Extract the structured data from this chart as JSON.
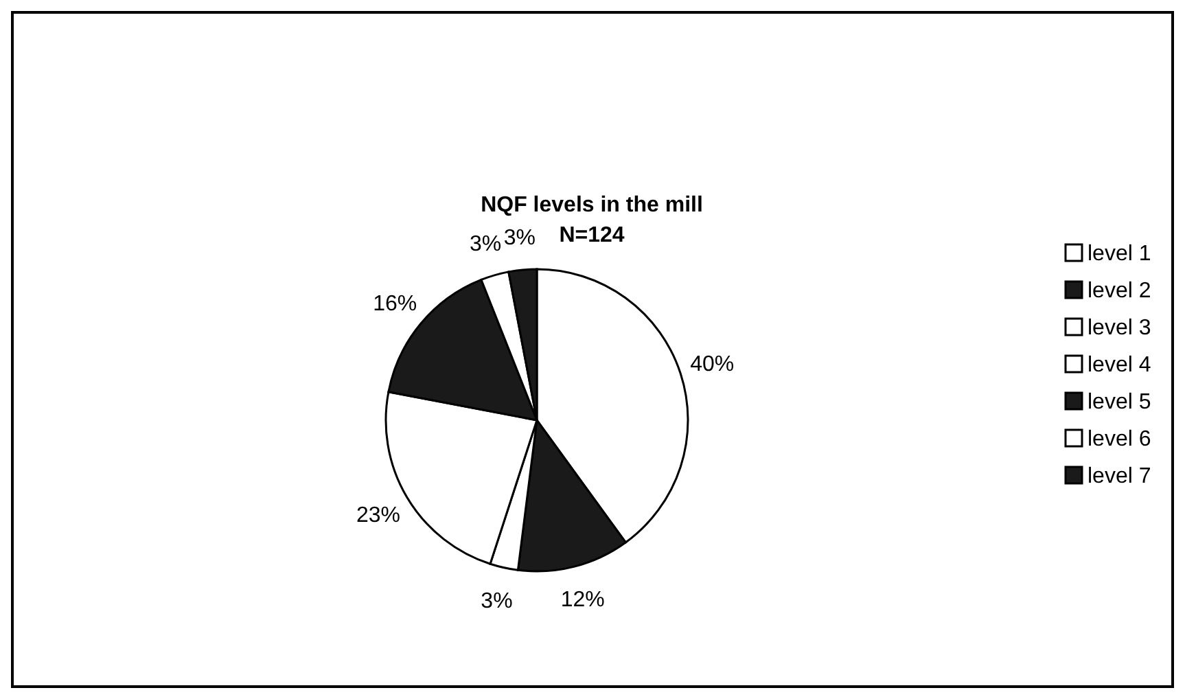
{
  "chart_data": {
    "type": "pie",
    "title": "NQF levels in the mill",
    "subtitle": "N=124",
    "categories": [
      "level 1",
      "level 2",
      "level 3",
      "level 4",
      "level 5",
      "level 6",
      "level 7"
    ],
    "values": [
      40,
      12,
      3,
      23,
      16,
      3,
      3
    ],
    "colors": [
      "#ffffff",
      "#1a1a1a",
      "#ffffff",
      "#ffffff",
      "#1a1a1a",
      "#ffffff",
      "#1a1a1a"
    ],
    "value_labels": [
      "40%",
      "12%",
      "3%",
      "23%",
      "16%",
      "3%",
      "3%"
    ],
    "legend": "right"
  }
}
